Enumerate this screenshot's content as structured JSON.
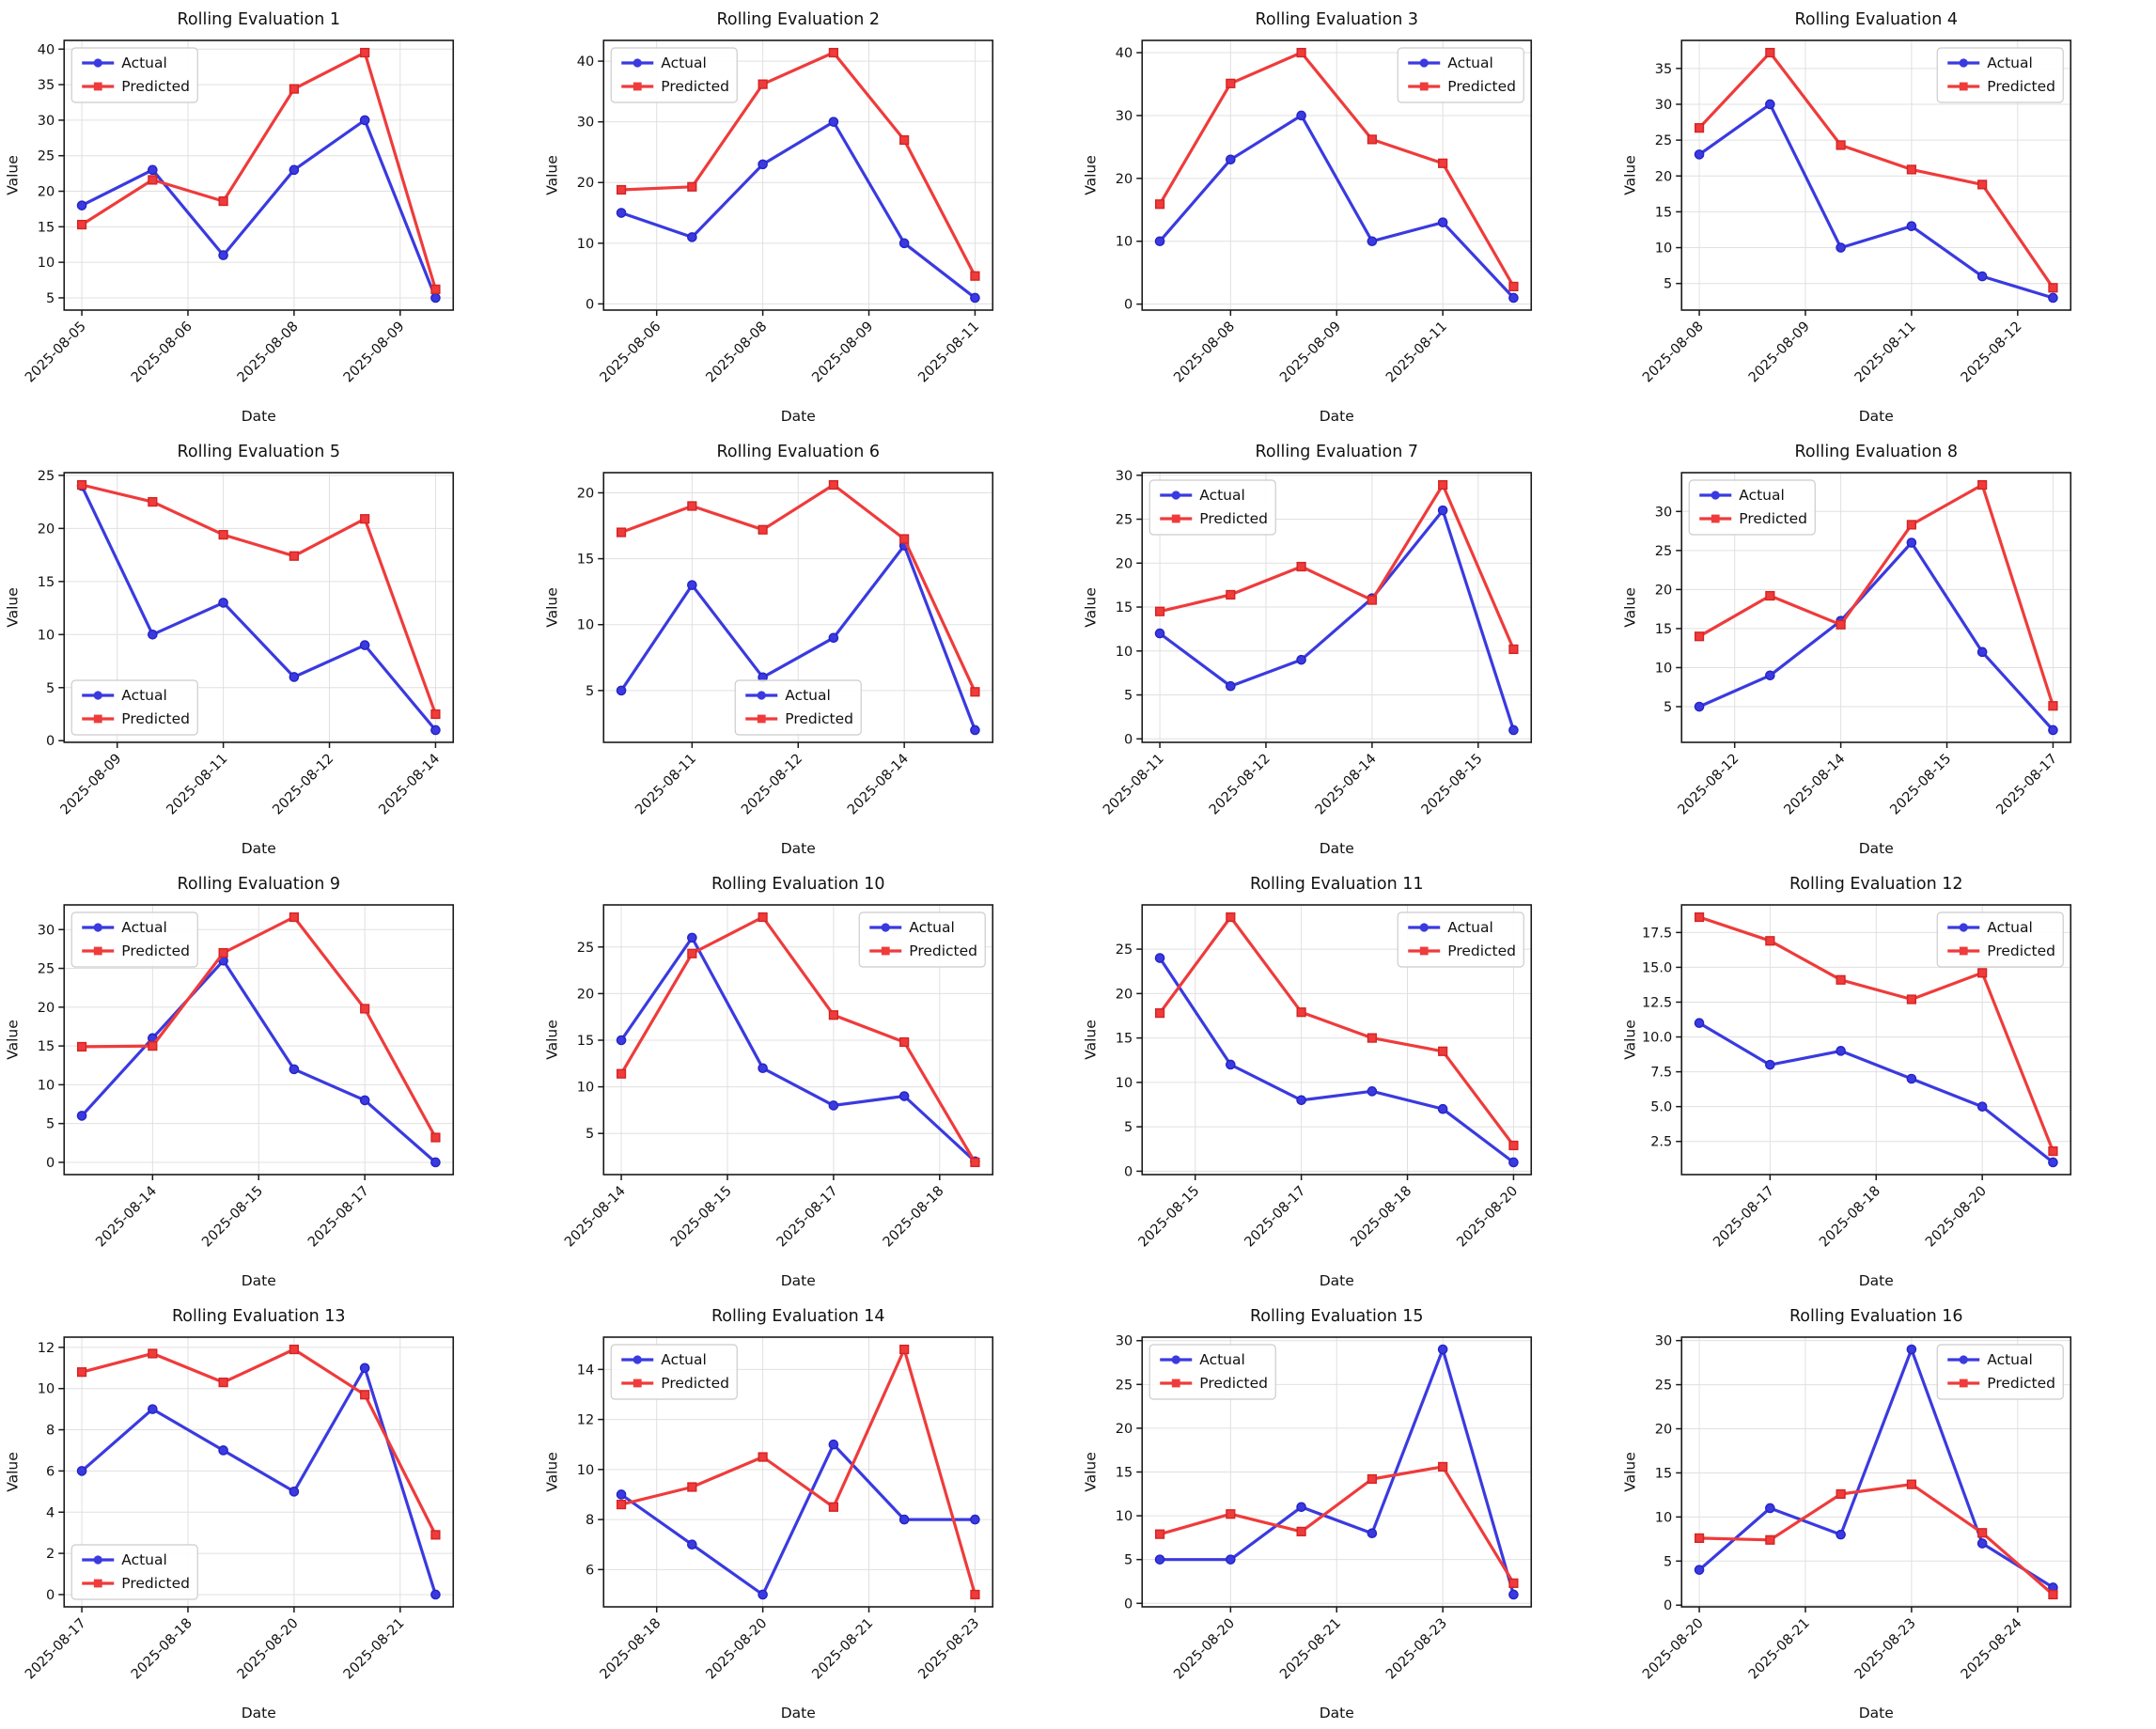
{
  "page": {
    "background": "#ffffff"
  },
  "shared": {
    "xlabel": "Date",
    "ylabel": "Value",
    "legend": {
      "actual_label": "Actual",
      "predicted_label": "Predicted"
    },
    "colors": {
      "actual_line": "#3a3ae0",
      "actual_marker_edge": "#2424c4",
      "predicted_line": "#ef3b3b",
      "predicted_marker_edge": "#d32424",
      "grid": "#e0e0e0",
      "frame": "#1a1a1a",
      "legend_border": "#cccccc",
      "legend_bg": "#ffffff"
    }
  },
  "chart_data": [
    {
      "type": "line",
      "title": "Rolling Evaluation 1",
      "xlabel": "Date",
      "ylabel": "Value",
      "x_tick_labels": [
        "2025-08-05",
        "2025-08-06",
        "2025-08-08",
        "2025-08-09"
      ],
      "x_tick_positions": [
        0,
        1.5,
        3,
        4.5
      ],
      "y_ticks": [
        5,
        10,
        15,
        20,
        25,
        30,
        35,
        40
      ],
      "y_tick_labels": [
        "5",
        "10",
        "15",
        "20",
        "25",
        "30",
        "35",
        "40"
      ],
      "series": [
        {
          "name": "Actual",
          "values": [
            18,
            23,
            11,
            23,
            30,
            5
          ]
        },
        {
          "name": "Predicted",
          "values": [
            15.3,
            21.6,
            18.6,
            34.4,
            39.5,
            6.2
          ]
        }
      ],
      "legend_pos": "upper-left",
      "grid": true
    },
    {
      "type": "line",
      "title": "Rolling Evaluation 2",
      "xlabel": "Date",
      "ylabel": "Value",
      "x_tick_labels": [
        "2025-08-06",
        "2025-08-08",
        "2025-08-09",
        "2025-08-11"
      ],
      "x_tick_positions": [
        0.5,
        2,
        3.5,
        5
      ],
      "y_ticks": [
        0,
        10,
        20,
        30,
        40
      ],
      "y_tick_labels": [
        "0",
        "10",
        "20",
        "30",
        "40"
      ],
      "series": [
        {
          "name": "Actual",
          "values": [
            15,
            11,
            23,
            30,
            10,
            1
          ]
        },
        {
          "name": "Predicted",
          "values": [
            18.8,
            19.3,
            36.2,
            41.4,
            27.0,
            4.6
          ]
        }
      ],
      "legend_pos": "upper-left",
      "grid": true
    },
    {
      "type": "line",
      "title": "Rolling Evaluation 3",
      "xlabel": "Date",
      "ylabel": "Value",
      "x_tick_labels": [
        "2025-08-08",
        "2025-08-09",
        "2025-08-11"
      ],
      "x_tick_positions": [
        1,
        2.5,
        4
      ],
      "y_ticks": [
        0,
        10,
        20,
        30,
        40
      ],
      "y_tick_labels": [
        "0",
        "10",
        "20",
        "30",
        "40"
      ],
      "series": [
        {
          "name": "Actual",
          "values": [
            10,
            23,
            30,
            10,
            13,
            1
          ]
        },
        {
          "name": "Predicted",
          "values": [
            15.9,
            35.1,
            40.0,
            26.2,
            22.4,
            2.8
          ]
        }
      ],
      "legend_pos": "upper-right",
      "grid": true
    },
    {
      "type": "line",
      "title": "Rolling Evaluation 4",
      "xlabel": "Date",
      "ylabel": "Value",
      "x_tick_labels": [
        "2025-08-08",
        "2025-08-09",
        "2025-08-11",
        "2025-08-12"
      ],
      "x_tick_positions": [
        0,
        1.5,
        3,
        4.5
      ],
      "y_ticks": [
        5,
        10,
        15,
        20,
        25,
        30,
        35
      ],
      "y_tick_labels": [
        "5",
        "10",
        "15",
        "20",
        "25",
        "30",
        "35"
      ],
      "series": [
        {
          "name": "Actual",
          "values": [
            23,
            30,
            10,
            13,
            6,
            3
          ]
        },
        {
          "name": "Predicted",
          "values": [
            26.7,
            37.2,
            24.3,
            20.9,
            18.8,
            4.4
          ]
        }
      ],
      "legend_pos": "upper-right",
      "grid": true
    },
    {
      "type": "line",
      "title": "Rolling Evaluation 5",
      "xlabel": "Date",
      "ylabel": "Value",
      "x_tick_labels": [
        "2025-08-09",
        "2025-08-11",
        "2025-08-12",
        "2025-08-14"
      ],
      "x_tick_positions": [
        0.5,
        2,
        3.5,
        5
      ],
      "y_ticks": [
        0,
        5,
        10,
        15,
        20,
        25
      ],
      "y_tick_labels": [
        "0",
        "5",
        "10",
        "15",
        "20",
        "25"
      ],
      "series": [
        {
          "name": "Actual",
          "values": [
            24,
            10,
            13,
            6,
            9,
            1
          ]
        },
        {
          "name": "Predicted",
          "values": [
            24.1,
            22.5,
            19.4,
            17.4,
            20.9,
            2.5
          ]
        }
      ],
      "legend_pos": "lower-left",
      "grid": true
    },
    {
      "type": "line",
      "title": "Rolling Evaluation 6",
      "xlabel": "Date",
      "ylabel": "Value",
      "x_tick_labels": [
        "2025-08-11",
        "2025-08-12",
        "2025-08-14"
      ],
      "x_tick_positions": [
        1,
        2.5,
        4
      ],
      "y_ticks": [
        5,
        10,
        15,
        20
      ],
      "y_tick_labels": [
        "5",
        "10",
        "15",
        "20"
      ],
      "series": [
        {
          "name": "Actual",
          "values": [
            5,
            13,
            6,
            9,
            16,
            2
          ]
        },
        {
          "name": "Predicted",
          "values": [
            17.0,
            19.0,
            17.2,
            20.6,
            16.5,
            4.9
          ]
        }
      ],
      "legend_pos": "lower-center",
      "grid": true
    },
    {
      "type": "line",
      "title": "Rolling Evaluation 7",
      "xlabel": "Date",
      "ylabel": "Value",
      "x_tick_labels": [
        "2025-08-11",
        "2025-08-12",
        "2025-08-14",
        "2025-08-15"
      ],
      "x_tick_positions": [
        0,
        1.5,
        3,
        4.5
      ],
      "y_ticks": [
        0,
        5,
        10,
        15,
        20,
        25,
        30
      ],
      "y_tick_labels": [
        "0",
        "5",
        "10",
        "15",
        "20",
        "25",
        "30"
      ],
      "series": [
        {
          "name": "Actual",
          "values": [
            12,
            6,
            9,
            16,
            26,
            1
          ]
        },
        {
          "name": "Predicted",
          "values": [
            14.5,
            16.4,
            19.6,
            15.8,
            28.9,
            10.2
          ]
        }
      ],
      "legend_pos": "upper-left",
      "grid": true
    },
    {
      "type": "line",
      "title": "Rolling Evaluation 8",
      "xlabel": "Date",
      "ylabel": "Value",
      "x_tick_labels": [
        "2025-08-12",
        "2025-08-14",
        "2025-08-15",
        "2025-08-17"
      ],
      "x_tick_positions": [
        0.5,
        2,
        3.5,
        5
      ],
      "y_ticks": [
        5,
        10,
        15,
        20,
        25,
        30
      ],
      "y_tick_labels": [
        "5",
        "10",
        "15",
        "20",
        "25",
        "30"
      ],
      "series": [
        {
          "name": "Actual",
          "values": [
            5,
            9,
            16,
            26,
            12,
            2
          ]
        },
        {
          "name": "Predicted",
          "values": [
            14.0,
            19.2,
            15.5,
            28.3,
            33.4,
            5.1
          ]
        }
      ],
      "legend_pos": "upper-left",
      "grid": true
    },
    {
      "type": "line",
      "title": "Rolling Evaluation 9",
      "xlabel": "Date",
      "ylabel": "Value",
      "x_tick_labels": [
        "2025-08-14",
        "2025-08-15",
        "2025-08-17"
      ],
      "x_tick_positions": [
        1,
        2.5,
        4
      ],
      "y_ticks": [
        0,
        5,
        10,
        15,
        20,
        25,
        30
      ],
      "y_tick_labels": [
        "0",
        "5",
        "10",
        "15",
        "20",
        "25",
        "30"
      ],
      "series": [
        {
          "name": "Actual",
          "values": [
            6,
            16,
            26,
            12,
            8,
            0
          ]
        },
        {
          "name": "Predicted",
          "values": [
            14.9,
            15.0,
            27.0,
            31.6,
            19.8,
            3.2
          ]
        }
      ],
      "legend_pos": "upper-left",
      "grid": true
    },
    {
      "type": "line",
      "title": "Rolling Evaluation 10",
      "xlabel": "Date",
      "ylabel": "Value",
      "x_tick_labels": [
        "2025-08-14",
        "2025-08-15",
        "2025-08-17",
        "2025-08-18"
      ],
      "x_tick_positions": [
        0,
        1.5,
        3,
        4.5
      ],
      "y_ticks": [
        5,
        10,
        15,
        20,
        25
      ],
      "y_tick_labels": [
        "5",
        "10",
        "15",
        "20",
        "25"
      ],
      "series": [
        {
          "name": "Actual",
          "values": [
            15,
            26,
            12,
            8,
            9,
            2
          ]
        },
        {
          "name": "Predicted",
          "values": [
            11.4,
            24.3,
            28.2,
            17.7,
            14.8,
            1.9
          ]
        }
      ],
      "legend_pos": "upper-right",
      "grid": true
    },
    {
      "type": "line",
      "title": "Rolling Evaluation 11",
      "xlabel": "Date",
      "ylabel": "Value",
      "x_tick_labels": [
        "2025-08-15",
        "2025-08-17",
        "2025-08-18",
        "2025-08-20"
      ],
      "x_tick_positions": [
        0.5,
        2,
        3.5,
        5
      ],
      "y_ticks": [
        0,
        5,
        10,
        15,
        20,
        25
      ],
      "y_tick_labels": [
        "0",
        "5",
        "10",
        "15",
        "20",
        "25"
      ],
      "series": [
        {
          "name": "Actual",
          "values": [
            24,
            12,
            8,
            9,
            7,
            1
          ]
        },
        {
          "name": "Predicted",
          "values": [
            17.8,
            28.6,
            17.9,
            15.0,
            13.5,
            2.9
          ]
        }
      ],
      "legend_pos": "upper-right",
      "grid": true
    },
    {
      "type": "line",
      "title": "Rolling Evaluation 12",
      "xlabel": "Date",
      "ylabel": "Value",
      "x_tick_labels": [
        "2025-08-17",
        "2025-08-18",
        "2025-08-20"
      ],
      "x_tick_positions": [
        1,
        2.5,
        4
      ],
      "y_ticks": [
        2.5,
        5.0,
        7.5,
        10.0,
        12.5,
        15.0,
        17.5
      ],
      "y_tick_labels": [
        "2.5",
        "5.0",
        "7.5",
        "10.0",
        "12.5",
        "15.0",
        "17.5"
      ],
      "series": [
        {
          "name": "Actual",
          "values": [
            11,
            8,
            9,
            7,
            5,
            1
          ]
        },
        {
          "name": "Predicted",
          "values": [
            18.6,
            16.9,
            14.1,
            12.7,
            14.6,
            1.8
          ]
        }
      ],
      "legend_pos": "upper-right",
      "grid": true
    },
    {
      "type": "line",
      "title": "Rolling Evaluation 13",
      "xlabel": "Date",
      "ylabel": "Value",
      "x_tick_labels": [
        "2025-08-17",
        "2025-08-18",
        "2025-08-20",
        "2025-08-21"
      ],
      "x_tick_positions": [
        0,
        1.5,
        3,
        4.5
      ],
      "y_ticks": [
        0,
        2,
        4,
        6,
        8,
        10,
        12
      ],
      "y_tick_labels": [
        "0",
        "2",
        "4",
        "6",
        "8",
        "10",
        "12"
      ],
      "series": [
        {
          "name": "Actual",
          "values": [
            6,
            9,
            7,
            5,
            11,
            0
          ]
        },
        {
          "name": "Predicted",
          "values": [
            10.8,
            11.7,
            10.3,
            11.9,
            9.7,
            2.9
          ]
        }
      ],
      "legend_pos": "lower-left",
      "grid": true
    },
    {
      "type": "line",
      "title": "Rolling Evaluation 14",
      "xlabel": "Date",
      "ylabel": "Value",
      "x_tick_labels": [
        "2025-08-18",
        "2025-08-20",
        "2025-08-21",
        "2025-08-23"
      ],
      "x_tick_positions": [
        0.5,
        2,
        3.5,
        5
      ],
      "y_ticks": [
        6,
        8,
        10,
        12,
        14
      ],
      "y_tick_labels": [
        "6",
        "8",
        "10",
        "12",
        "14"
      ],
      "series": [
        {
          "name": "Actual",
          "values": [
            9,
            7,
            5,
            11,
            8,
            8
          ]
        },
        {
          "name": "Predicted",
          "values": [
            8.6,
            9.3,
            10.5,
            8.5,
            14.8,
            5.0
          ]
        }
      ],
      "legend_pos": "upper-left",
      "grid": true
    },
    {
      "type": "line",
      "title": "Rolling Evaluation 15",
      "xlabel": "Date",
      "ylabel": "Value",
      "x_tick_labels": [
        "2025-08-20",
        "2025-08-21",
        "2025-08-23"
      ],
      "x_tick_positions": [
        1,
        2.5,
        4
      ],
      "y_ticks": [
        0,
        5,
        10,
        15,
        20,
        25,
        30
      ],
      "y_tick_labels": [
        "0",
        "5",
        "10",
        "15",
        "20",
        "25",
        "30"
      ],
      "series": [
        {
          "name": "Actual",
          "values": [
            5,
            5,
            11,
            8,
            29,
            1
          ]
        },
        {
          "name": "Predicted",
          "values": [
            7.9,
            10.2,
            8.2,
            14.2,
            15.6,
            2.3
          ]
        }
      ],
      "legend_pos": "upper-left",
      "grid": true
    },
    {
      "type": "line",
      "title": "Rolling Evaluation 16",
      "xlabel": "Date",
      "ylabel": "Value",
      "x_tick_labels": [
        "2025-08-20",
        "2025-08-21",
        "2025-08-23",
        "2025-08-24"
      ],
      "x_tick_positions": [
        0,
        1.5,
        3,
        4.5
      ],
      "y_ticks": [
        0,
        5,
        10,
        15,
        20,
        25,
        30
      ],
      "y_tick_labels": [
        "0",
        "5",
        "10",
        "15",
        "20",
        "25",
        "30"
      ],
      "series": [
        {
          "name": "Actual",
          "values": [
            4,
            11,
            8,
            29,
            7,
            2
          ]
        },
        {
          "name": "Predicted",
          "values": [
            7.6,
            7.4,
            12.6,
            13.7,
            8.2,
            1.2
          ]
        }
      ],
      "legend_pos": "upper-right",
      "grid": true
    }
  ]
}
